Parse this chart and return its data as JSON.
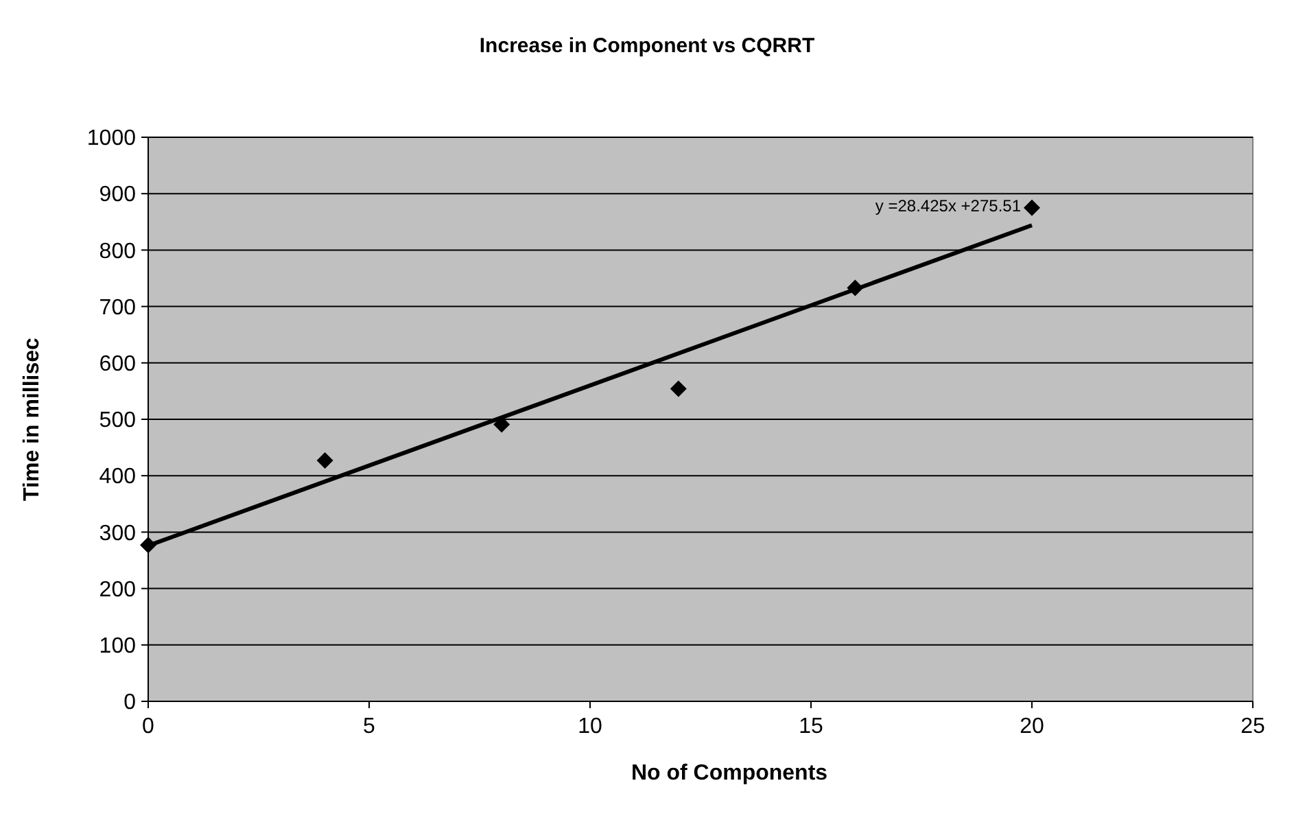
{
  "chart_data": {
    "type": "scatter",
    "title": "Increase in Component vs CQRRT",
    "xlabel": "No of Components",
    "ylabel": "Time in millisec",
    "xlim": [
      0,
      25
    ],
    "xticks": [
      0,
      5,
      10,
      15,
      20,
      25
    ],
    "ylim": [
      0,
      1000
    ],
    "yticks": [
      0,
      100,
      200,
      300,
      400,
      500,
      600,
      700,
      800,
      900,
      1000
    ],
    "grid": "y",
    "series": [
      {
        "color": "#000000",
        "marker": "diamond",
        "x": [
          0,
          4,
          8,
          12,
          16,
          20
        ],
        "values": [
          277,
          427,
          491,
          554,
          733,
          875
        ]
      },
      {
        "type": "line",
        "color": "#000000",
        "marker": "none",
        "line_style": "solid",
        "x": [
          0,
          20
        ],
        "values": [
          276,
          844
        ]
      }
    ],
    "annotations": [
      {
        "text": "y =28.425x +275.51",
        "x": 20,
        "y": 844
      }
    ]
  }
}
